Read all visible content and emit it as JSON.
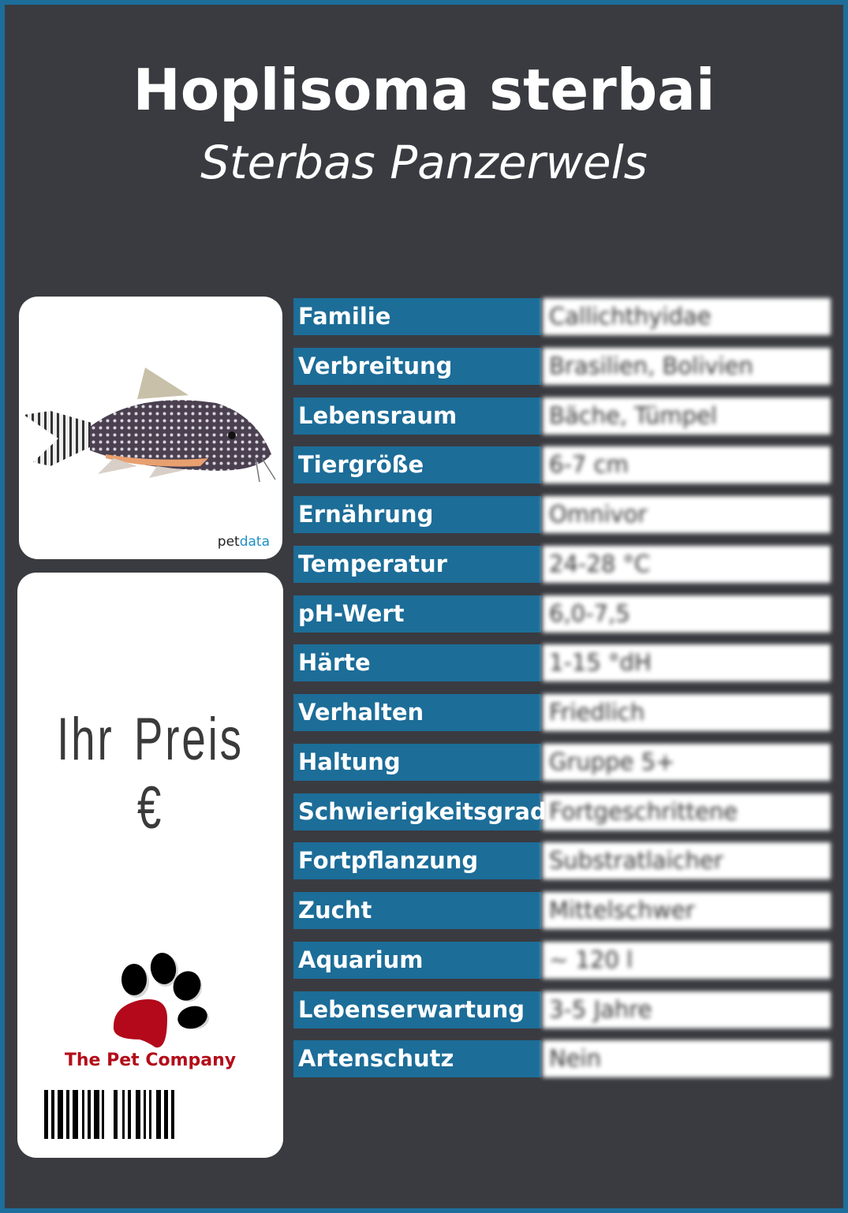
{
  "header": {
    "title": "Hoplisoma sterbai",
    "subtitle": "Sterbas Panzerwels"
  },
  "image_card": {
    "watermark_left": "pet",
    "watermark_right": "data"
  },
  "price_card": {
    "price_label": "Ihr Preis €",
    "brand": "The Pet Company",
    "brand_color": "#b30d1a"
  },
  "colors": {
    "border": "#1d6e9b",
    "background": "#3a3b40",
    "label_cell": "#1c6d98"
  },
  "facts": [
    {
      "label": "Familie",
      "value": "Callichthyidae"
    },
    {
      "label": "Verbreitung",
      "value": "Brasilien, Bolivien"
    },
    {
      "label": "Lebensraum",
      "value": "Bäche, Tümpel"
    },
    {
      "label": "Tiergröße",
      "value": "6-7 cm"
    },
    {
      "label": "Ernährung",
      "value": "Omnivor"
    },
    {
      "label": "Temperatur",
      "value": "24-28 °C"
    },
    {
      "label": "pH-Wert",
      "value": "6,0-7,5"
    },
    {
      "label": "Härte",
      "value": "1-15 °dH"
    },
    {
      "label": "Verhalten",
      "value": "Friedlich"
    },
    {
      "label": "Haltung",
      "value": "Gruppe 5+"
    },
    {
      "label": "Schwierigkeitsgrad",
      "value": "Fortgeschrittene"
    },
    {
      "label": "Fortpflanzung",
      "value": "Substratlaicher"
    },
    {
      "label": "Zucht",
      "value": "Mittelschwer"
    },
    {
      "label": "Aquarium",
      "value": "~ 120 l"
    },
    {
      "label": "Lebenserwartung",
      "value": "3-5 Jahre"
    },
    {
      "label": "Artenschutz",
      "value": "Nein"
    }
  ]
}
